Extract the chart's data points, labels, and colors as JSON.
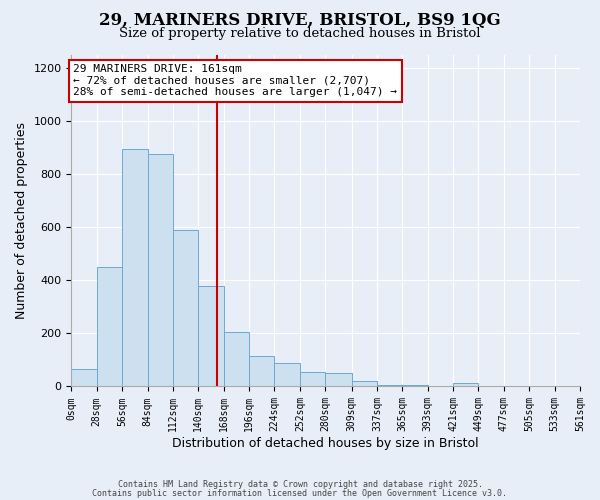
{
  "title": "29, MARINERS DRIVE, BRISTOL, BS9 1QG",
  "subtitle": "Size of property relative to detached houses in Bristol",
  "xlabel": "Distribution of detached houses by size in Bristol",
  "ylabel": "Number of detached properties",
  "bin_edges": [
    0,
    28,
    56,
    84,
    112,
    140,
    168,
    196,
    224,
    252,
    280,
    309,
    337,
    365,
    393,
    421,
    449,
    477,
    505,
    533,
    561
  ],
  "bin_labels": [
    "0sqm",
    "28sqm",
    "56sqm",
    "84sqm",
    "112sqm",
    "140sqm",
    "168sqm",
    "196sqm",
    "224sqm",
    "252sqm",
    "280sqm",
    "309sqm",
    "337sqm",
    "365sqm",
    "393sqm",
    "421sqm",
    "449sqm",
    "477sqm",
    "505sqm",
    "533sqm",
    "561sqm"
  ],
  "counts": [
    65,
    450,
    895,
    875,
    590,
    380,
    205,
    115,
    90,
    55,
    50,
    20,
    5,
    5,
    0,
    12,
    0,
    0,
    0,
    0
  ],
  "bar_color": "#cce0f0",
  "bar_edge_color": "#6aaad4",
  "vline_x": 161,
  "vline_color": "#cc0000",
  "annotation_line1": "29 MARINERS DRIVE: 161sqm",
  "annotation_line2": "← 72% of detached houses are smaller (2,707)",
  "annotation_line3": "28% of semi-detached houses are larger (1,047) →",
  "annotation_box_color": "white",
  "annotation_box_edge": "#cc0000",
  "ylim": [
    0,
    1250
  ],
  "yticks": [
    0,
    200,
    400,
    600,
    800,
    1000,
    1200
  ],
  "bg_color": "#e8eef8",
  "plot_bg_color": "#e8eef8",
  "grid_color": "#ffffff",
  "footer_line1": "Contains HM Land Registry data © Crown copyright and database right 2025.",
  "footer_line2": "Contains public sector information licensed under the Open Government Licence v3.0."
}
